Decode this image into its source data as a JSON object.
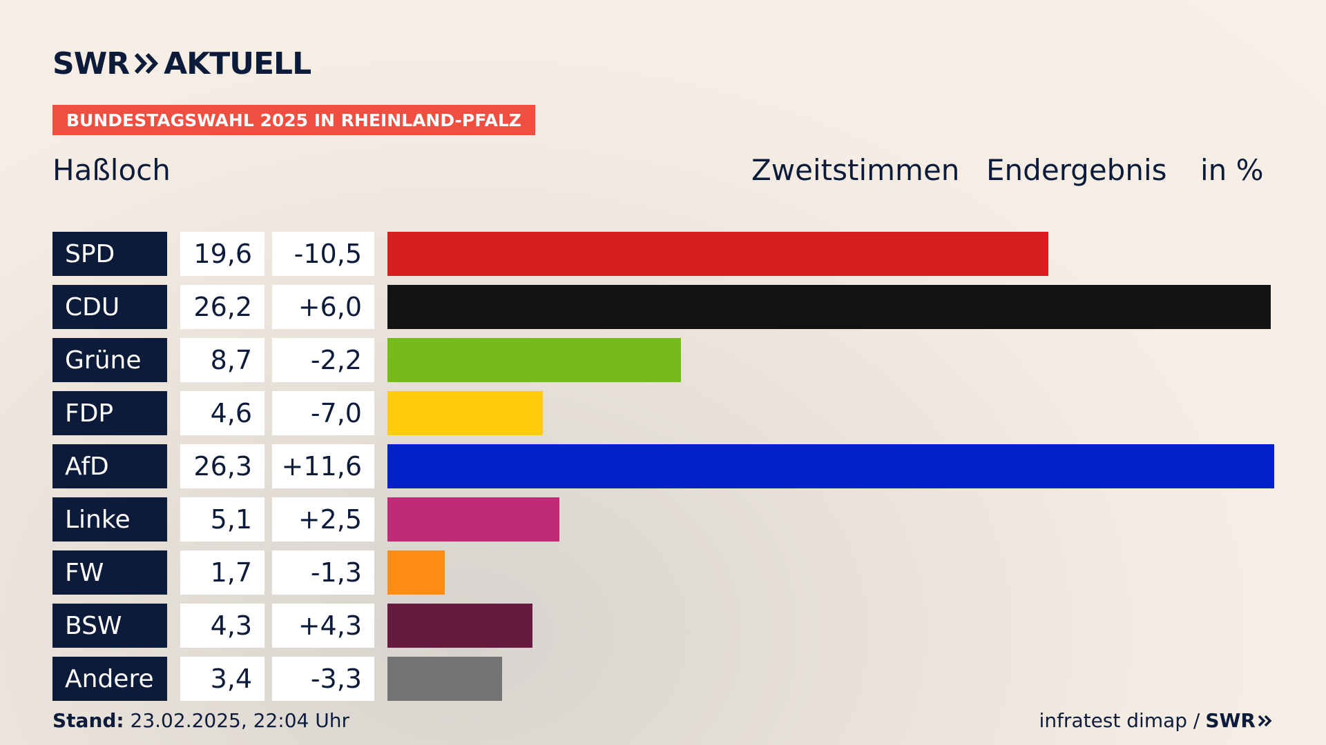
{
  "brand": {
    "logo_left": "SWR",
    "logo_right": "AKTUELL",
    "footer_logo": "SWR"
  },
  "badge": "BUNDESTAGSWAHL 2025 IN RHEINLAND-PFALZ",
  "place": "Haßloch",
  "header": {
    "vote": "Zweitstimmen",
    "result": "Endergebnis",
    "unit": "in %"
  },
  "footer": {
    "stand_label": "Stand:",
    "stand_value": "23.02.2025, 22:04 Uhr",
    "source": "infratest dimap /"
  },
  "colors": {
    "navy": "#0c1b3a",
    "badge": "#f04e41"
  },
  "chart_data": {
    "type": "bar",
    "orientation": "horizontal",
    "categories": [
      "SPD",
      "CDU",
      "Grüne",
      "FDP",
      "AfD",
      "Linke",
      "FW",
      "BSW",
      "Andere"
    ],
    "values": [
      19.6,
      26.2,
      8.7,
      4.6,
      26.3,
      5.1,
      1.7,
      4.3,
      3.4
    ],
    "value_labels": [
      "19,6",
      "26,2",
      "8,7",
      "4,6",
      "26,3",
      "5,1",
      "1,7",
      "4,3",
      "3,4"
    ],
    "diff_labels": [
      "-10,5",
      "+6,0",
      "-2,2",
      "-7,0",
      "+11,6",
      "+2,5",
      "-1,3",
      "+4,3",
      "-3,3"
    ],
    "bar_colors": [
      "#d81e1e",
      "#121212",
      "#77bb1a",
      "#ffcc0a",
      "#0020c8",
      "#be2c78",
      "#ff8c14",
      "#661a40",
      "#737373"
    ],
    "xlim": [
      0,
      26.3
    ],
    "grid": false,
    "legend": "none"
  }
}
